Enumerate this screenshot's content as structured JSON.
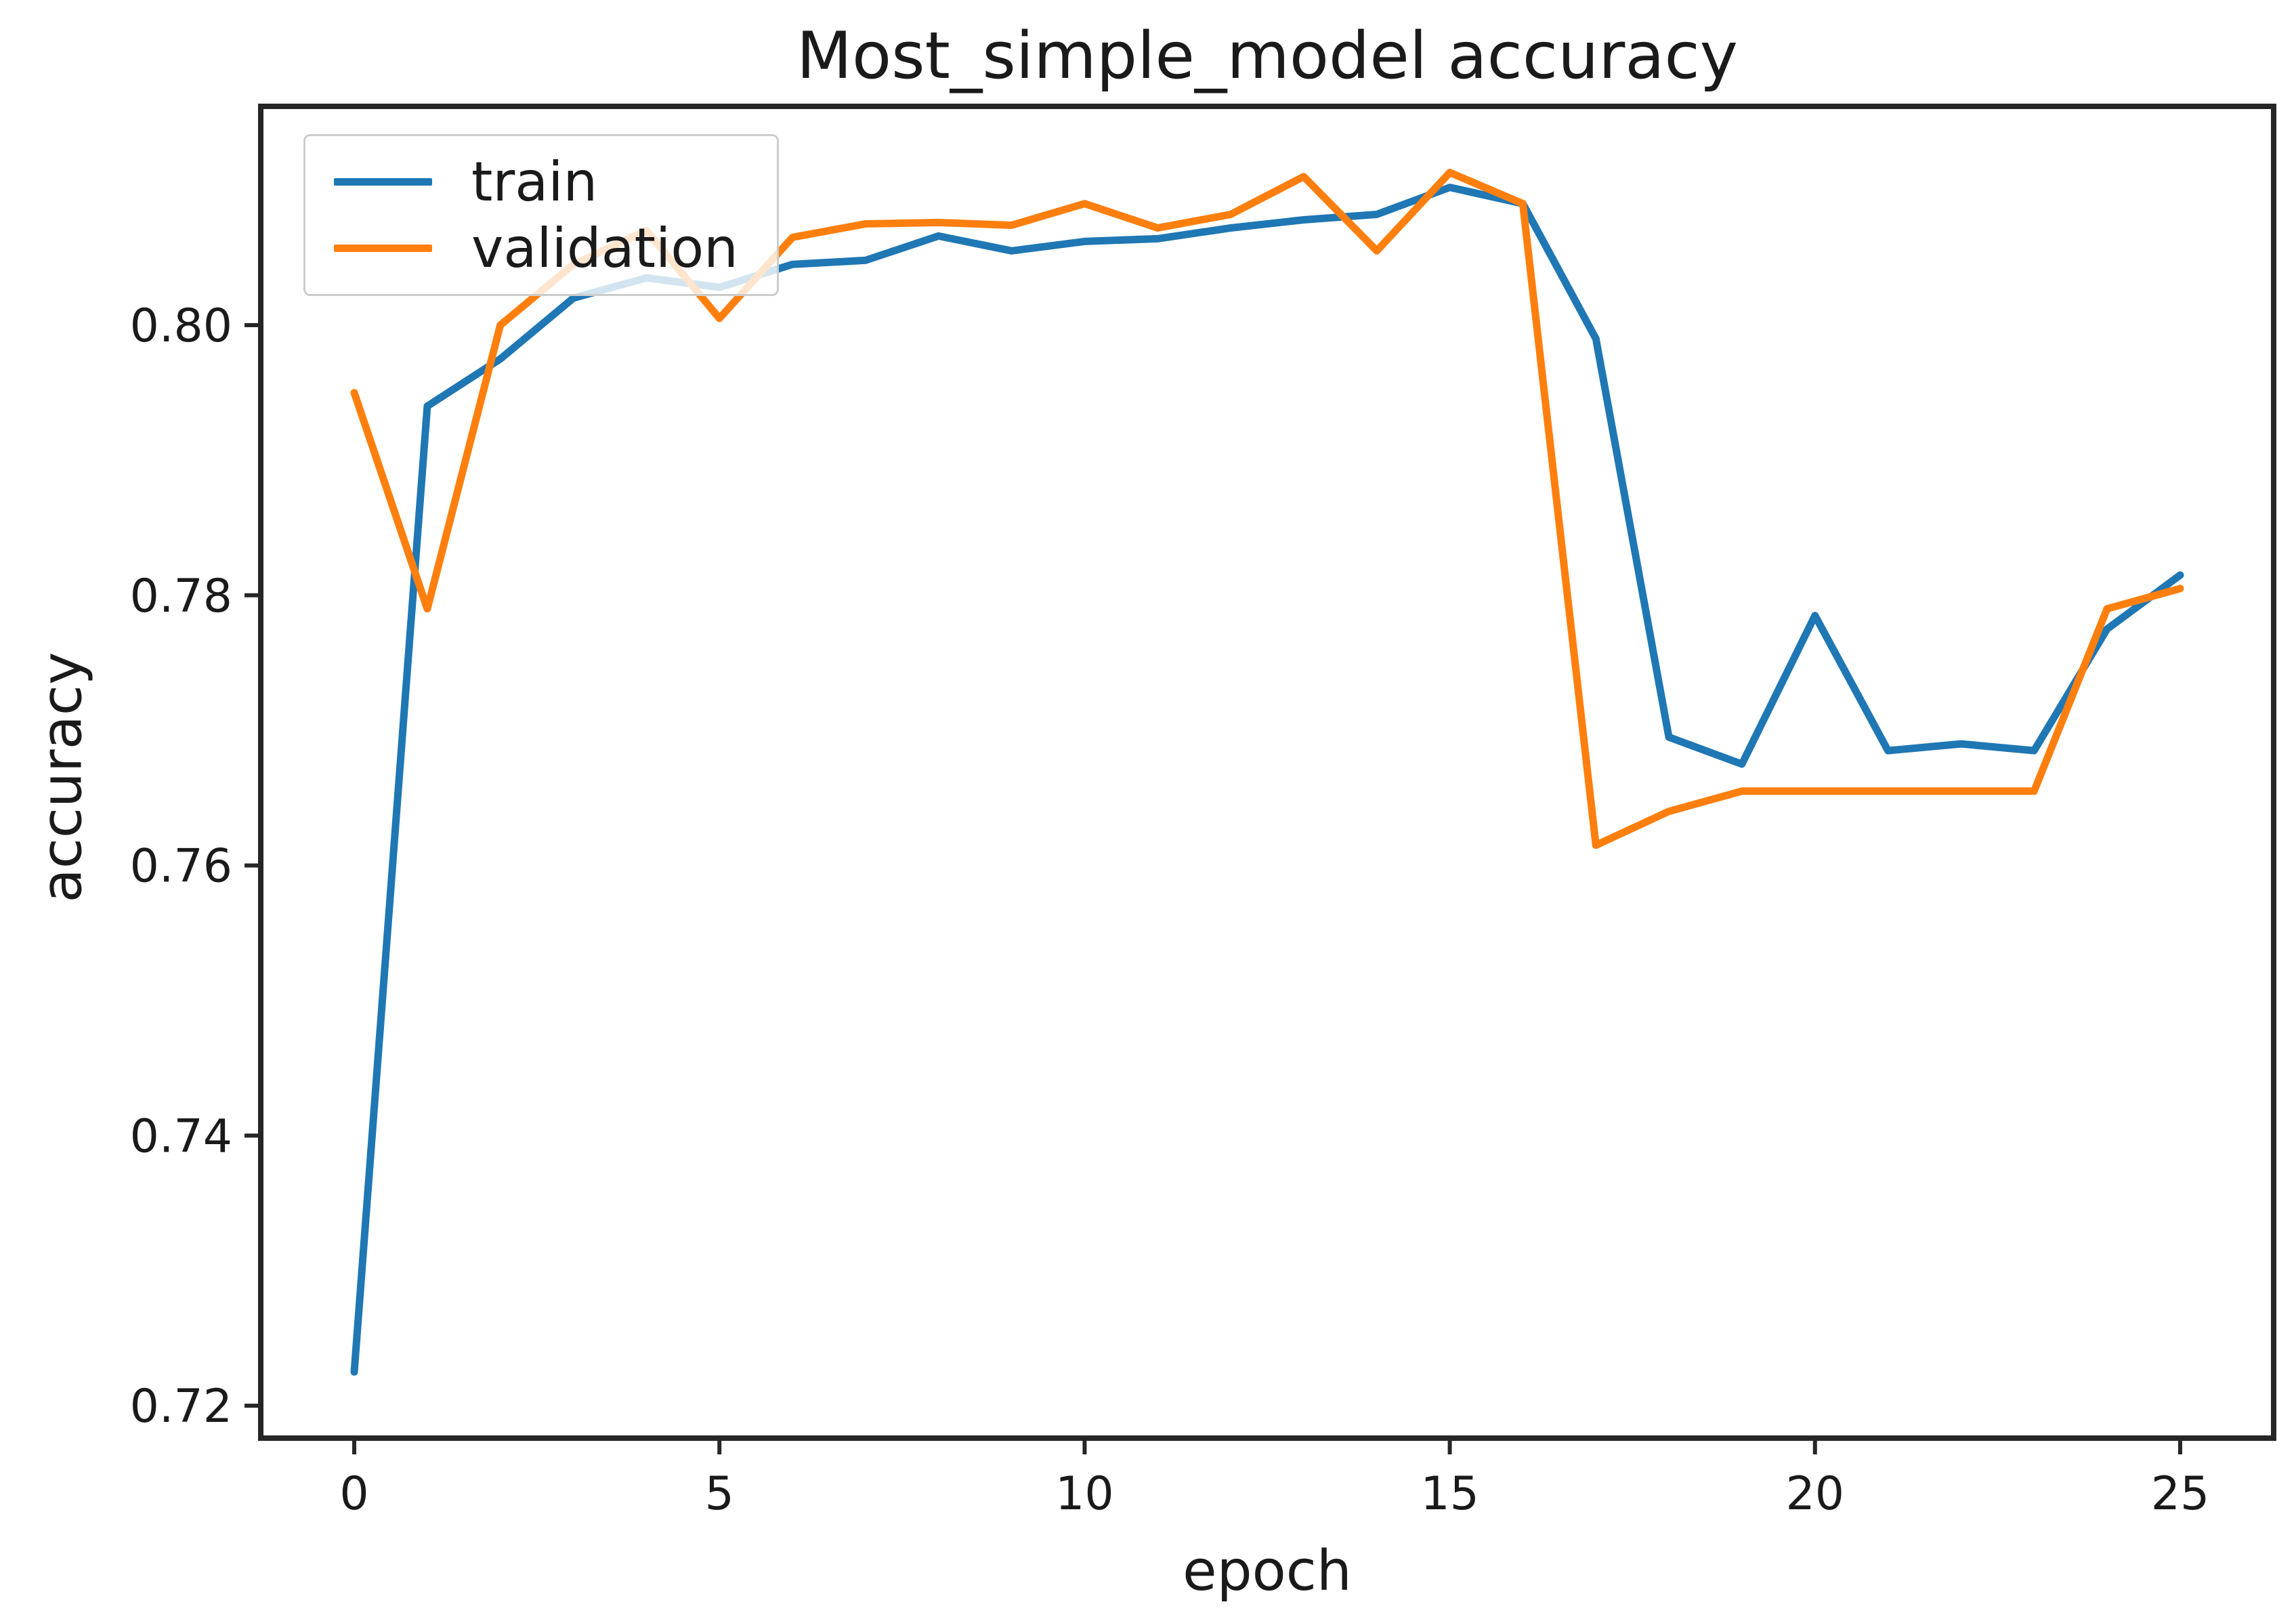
{
  "title": "Most_simple_model accuracy",
  "axes": {
    "xlabel": "epoch",
    "ylabel": "accuracy"
  },
  "legend": {
    "items": [
      {
        "label": "train",
        "color": "#1f77b4"
      },
      {
        "label": "validation",
        "color": "#ff7f0e"
      }
    ]
  },
  "colors": {
    "train": "#1f77b4",
    "validation": "#ff7f0e",
    "spine": "#262626",
    "text": "#1a1a1a"
  },
  "chart_data": {
    "type": "line",
    "title": "Most_simple_model accuracy",
    "xlabel": "epoch",
    "ylabel": "accuracy",
    "x": [
      0,
      1,
      2,
      3,
      4,
      5,
      6,
      7,
      8,
      9,
      10,
      11,
      12,
      13,
      14,
      15,
      16,
      17,
      18,
      19,
      20,
      21,
      22,
      23,
      24,
      25
    ],
    "series": [
      {
        "name": "train",
        "color": "#1f77b4",
        "values": [
          0.7225,
          0.794,
          0.7975,
          0.802,
          0.8035,
          0.8028,
          0.8045,
          0.8048,
          0.8066,
          0.8055,
          0.8062,
          0.8064,
          0.8072,
          0.8078,
          0.8082,
          0.8102,
          0.809,
          0.799,
          0.7695,
          0.7675,
          0.7785,
          0.7685,
          0.769,
          0.7685,
          0.7775,
          0.7815
        ]
      },
      {
        "name": "validation",
        "color": "#ff7f0e",
        "values": [
          0.795,
          0.779,
          0.8,
          0.8045,
          0.807,
          0.8005,
          0.8065,
          0.8075,
          0.8076,
          0.8074,
          0.809,
          0.8072,
          0.8082,
          0.811,
          0.8055,
          0.8113,
          0.809,
          0.7615,
          0.764,
          0.7655,
          0.7655,
          0.7655,
          0.7655,
          0.7655,
          0.779,
          0.7805
        ]
      }
    ],
    "xlim": [
      -1.28,
      26.28
    ],
    "ylim": [
      0.7176,
      0.8162
    ],
    "xticks": [
      0,
      5,
      10,
      15,
      20,
      25
    ],
    "yticks": [
      0.72,
      0.74,
      0.76,
      0.78,
      0.8
    ],
    "grid": false,
    "legend_position": "upper left"
  }
}
